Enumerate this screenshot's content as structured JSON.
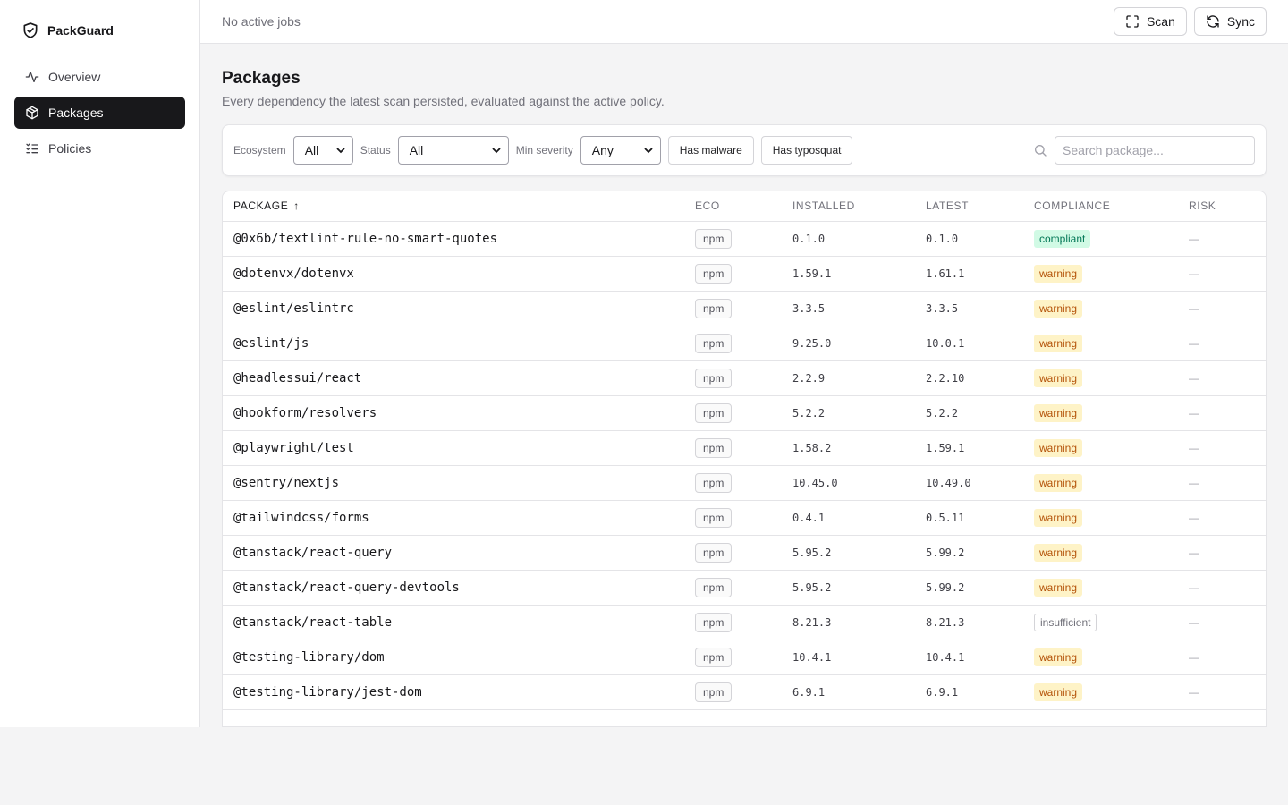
{
  "app": {
    "name": "PackGuard"
  },
  "sidebar": {
    "items": [
      {
        "label": "Overview",
        "icon": "activity-icon",
        "active": false
      },
      {
        "label": "Packages",
        "icon": "package-icon",
        "active": true
      },
      {
        "label": "Policies",
        "icon": "list-checks-icon",
        "active": false
      }
    ]
  },
  "topbar": {
    "status": "No active jobs",
    "scan_label": "Scan",
    "sync_label": "Sync"
  },
  "page": {
    "title": "Packages",
    "subtitle": "Every dependency the latest scan persisted, evaluated against the active policy."
  },
  "filters": {
    "ecosystem_label": "Ecosystem",
    "ecosystem_value": "All",
    "status_label": "Status",
    "status_value": "All",
    "severity_label": "Min severity",
    "severity_value": "Any",
    "malware_label": "Has malware",
    "typosquat_label": "Has typosquat",
    "search_placeholder": "Search package..."
  },
  "table": {
    "headers": {
      "package": "PACKAGE",
      "sort_arrow": "↑",
      "eco": "ECO",
      "installed": "INSTALLED",
      "latest": "LATEST",
      "compliance": "COMPLIANCE",
      "risk": "RISK"
    },
    "rows": [
      {
        "name": "@0x6b/textlint-rule-no-smart-quotes",
        "eco": "npm",
        "installed": "0.1.0",
        "latest": "0.1.0",
        "compliance": "compliant",
        "risk": "—"
      },
      {
        "name": "@dotenvx/dotenvx",
        "eco": "npm",
        "installed": "1.59.1",
        "latest": "1.61.1",
        "compliance": "warning",
        "risk": "—"
      },
      {
        "name": "@eslint/eslintrc",
        "eco": "npm",
        "installed": "3.3.5",
        "latest": "3.3.5",
        "compliance": "warning",
        "risk": "—"
      },
      {
        "name": "@eslint/js",
        "eco": "npm",
        "installed": "9.25.0",
        "latest": "10.0.1",
        "compliance": "warning",
        "risk": "—"
      },
      {
        "name": "@headlessui/react",
        "eco": "npm",
        "installed": "2.2.9",
        "latest": "2.2.10",
        "compliance": "warning",
        "risk": "—"
      },
      {
        "name": "@hookform/resolvers",
        "eco": "npm",
        "installed": "5.2.2",
        "latest": "5.2.2",
        "compliance": "warning",
        "risk": "—"
      },
      {
        "name": "@playwright/test",
        "eco": "npm",
        "installed": "1.58.2",
        "latest": "1.59.1",
        "compliance": "warning",
        "risk": "—"
      },
      {
        "name": "@sentry/nextjs",
        "eco": "npm",
        "installed": "10.45.0",
        "latest": "10.49.0",
        "compliance": "warning",
        "risk": "—"
      },
      {
        "name": "@tailwindcss/forms",
        "eco": "npm",
        "installed": "0.4.1",
        "latest": "0.5.11",
        "compliance": "warning",
        "risk": "—"
      },
      {
        "name": "@tanstack/react-query",
        "eco": "npm",
        "installed": "5.95.2",
        "latest": "5.99.2",
        "compliance": "warning",
        "risk": "—"
      },
      {
        "name": "@tanstack/react-query-devtools",
        "eco": "npm",
        "installed": "5.95.2",
        "latest": "5.99.2",
        "compliance": "warning",
        "risk": "—"
      },
      {
        "name": "@tanstack/react-table",
        "eco": "npm",
        "installed": "8.21.3",
        "latest": "8.21.3",
        "compliance": "insufficient",
        "risk": "—"
      },
      {
        "name": "@testing-library/dom",
        "eco": "npm",
        "installed": "10.4.1",
        "latest": "10.4.1",
        "compliance": "warning",
        "risk": "—"
      },
      {
        "name": "@testing-library/jest-dom",
        "eco": "npm",
        "installed": "6.9.1",
        "latest": "6.9.1",
        "compliance": "warning",
        "risk": "—"
      }
    ]
  },
  "colors": {
    "active_nav_bg": "#18181b",
    "compliant_bg": "#d1fae5",
    "compliant_fg": "#047857",
    "warning_bg": "#fef3c7",
    "warning_fg": "#b45309"
  }
}
